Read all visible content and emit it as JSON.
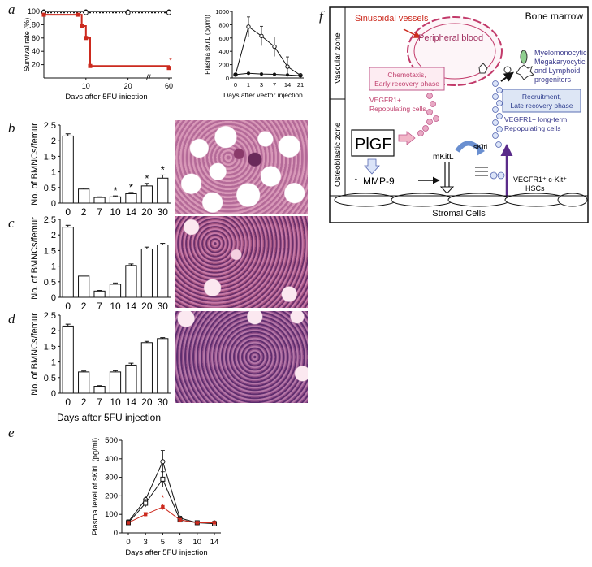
{
  "panel_labels": {
    "a": "a",
    "b": "b",
    "c": "c",
    "d": "d",
    "e": "e",
    "f": "f"
  },
  "chart_data": [
    {
      "id": "a_survival",
      "type": "line",
      "xlabel": "Days after 5FU injection",
      "ylabel": "Survival rate (%)",
      "xticks": [
        "10",
        "20",
        "60"
      ],
      "yticks": [
        "20",
        "40",
        "60",
        "80",
        "100"
      ],
      "ylim": [
        0,
        100
      ],
      "axis_break": "//",
      "series": [
        {
          "name": "control (solid)",
          "color": "#111111",
          "x": [
            0,
            10,
            20,
            60
          ],
          "y": [
            100,
            100,
            100,
            100
          ]
        },
        {
          "name": "control (dotted)",
          "color": "#111111",
          "x": [
            0,
            10,
            20,
            60
          ],
          "y": [
            98,
            98,
            98,
            98
          ]
        },
        {
          "name": "5FU (red)",
          "color": "#cc2a1e",
          "x": [
            0,
            8,
            9,
            10,
            11,
            60
          ],
          "y": [
            95,
            95,
            78,
            60,
            18,
            15
          ]
        }
      ],
      "annotation": "*"
    },
    {
      "id": "a_plasma",
      "type": "line",
      "xlabel": "Days after vector injection",
      "ylabel": "Plasma sKitL (pg/ml)",
      "xticks": [
        "0",
        "1",
        "3",
        "7",
        "14",
        "21"
      ],
      "yticks": [
        "0",
        "200",
        "400",
        "600",
        "800",
        "1000"
      ],
      "ylim": [
        0,
        1000
      ],
      "series": [
        {
          "name": "sKitL vector",
          "marker": "open",
          "y": [
            50,
            770,
            630,
            470,
            170,
            40
          ]
        },
        {
          "name": "control vector",
          "marker": "filled",
          "y": [
            50,
            70,
            60,
            55,
            45,
            35
          ]
        }
      ]
    },
    {
      "id": "b_bmnc",
      "type": "bar",
      "ylabel": "No. of BMNCs/femur",
      "categories": [
        "0",
        "2",
        "7",
        "10",
        "14",
        "20",
        "30"
      ],
      "values": [
        2.15,
        0.45,
        0.18,
        0.2,
        0.3,
        0.55,
        0.8
      ],
      "errors": [
        0.07,
        0.03,
        0.02,
        0.03,
        0.04,
        0.08,
        0.1
      ],
      "significance": [
        "",
        "",
        "",
        "*",
        "*",
        "*",
        "*"
      ],
      "yticks": [
        "0",
        "0.5",
        "1",
        "1.5",
        "2",
        "2.5"
      ],
      "ylim": [
        0,
        2.5
      ]
    },
    {
      "id": "c_bmnc",
      "type": "bar",
      "ylabel": "No. of BMNCs/femur",
      "categories": [
        "0",
        "2",
        "7",
        "10",
        "14",
        "20",
        "30"
      ],
      "values": [
        2.25,
        0.68,
        0.2,
        0.42,
        1.02,
        1.55,
        1.68
      ],
      "errors": [
        0.06,
        0.0,
        0.02,
        0.04,
        0.05,
        0.06,
        0.05
      ],
      "yticks": [
        "0",
        "0.5",
        "1",
        "1.5",
        "2",
        "2.5"
      ],
      "ylim": [
        0,
        2.5
      ]
    },
    {
      "id": "d_bmnc",
      "type": "bar",
      "ylabel": "No. of BMNCs/femur",
      "xlabel": "Days after 5FU injection",
      "categories": [
        "0",
        "2",
        "7",
        "10",
        "14",
        "20",
        "30"
      ],
      "values": [
        2.15,
        0.68,
        0.22,
        0.68,
        0.9,
        1.62,
        1.75
      ],
      "errors": [
        0.06,
        0.03,
        0.02,
        0.04,
        0.06,
        0.04,
        0.03
      ],
      "yticks": [
        "0",
        "0.5",
        "1",
        "1.5",
        "2",
        "2.5"
      ],
      "ylim": [
        0,
        2.5
      ]
    },
    {
      "id": "e_plasma",
      "type": "line",
      "xlabel": "Days after 5FU injection",
      "ylabel": "Plasma level of sKitL (pg/ml)",
      "categories": [
        "0",
        "3",
        "5",
        "8",
        "10",
        "14"
      ],
      "yticks": [
        "0",
        "100",
        "200",
        "300",
        "400",
        "500"
      ],
      "ylim": [
        0,
        500
      ],
      "series": [
        {
          "name": "open circle",
          "marker": "circle",
          "color": "#111111",
          "values": [
            60,
            180,
            385,
            80,
            55,
            55
          ],
          "errors": [
            10,
            20,
            60,
            10,
            5,
            5
          ]
        },
        {
          "name": "open square",
          "marker": "square",
          "color": "#111111",
          "values": [
            55,
            160,
            290,
            70,
            55,
            50
          ],
          "errors": [
            10,
            20,
            40,
            10,
            5,
            5
          ]
        },
        {
          "name": "red",
          "marker": "filled",
          "color": "#cc2a1e",
          "values": [
            55,
            100,
            140,
            70,
            55,
            55
          ],
          "errors": [
            5,
            10,
            15,
            8,
            5,
            5
          ]
        }
      ],
      "annotation": "*"
    }
  ],
  "diagram_f": {
    "bone_marrow": "Bone marrow",
    "vascular_zone": "Vascular zone",
    "osteoblastic_zone": "Osteoblastic zone",
    "sinusoidal_vessels": "Sinusoidal vessels",
    "peripheral_blood": "Peripheral blood",
    "chemotaxis_line1": "Chemotaxis,",
    "chemotaxis_line2": "Early recovery phase",
    "vegfr1_rep_line1": "VEGFR1+",
    "vegfr1_rep_line2": "Repopulating cells",
    "progenitors_line1": "Myelomonocytic",
    "progenitors_line2": "Megakaryocytic",
    "progenitors_line3": "and Lymphoid",
    "progenitors_line4": "progenitors",
    "recruitment_line1": "Recruitment,",
    "recruitment_line2": "Late recovery phase",
    "longterm_line1": "VEGFR1+ long-term",
    "longterm_line2": "Repopulating cells",
    "plgf": "PlGF",
    "skitl": "sKitL",
    "mkitl": "mKitL",
    "mmp9": "MMP-9",
    "hsc_line1": "VEGFR1⁺ c-Kit⁺",
    "hsc_line2": "HSCs",
    "stromal": "Stromal Cells"
  },
  "colors": {
    "accent_red": "#cc2a1e",
    "pink": "#d0608a",
    "blue_text": "#3a3a8c",
    "pale_pink": "#f8e6ec",
    "pale_blue": "#dde6f5"
  }
}
